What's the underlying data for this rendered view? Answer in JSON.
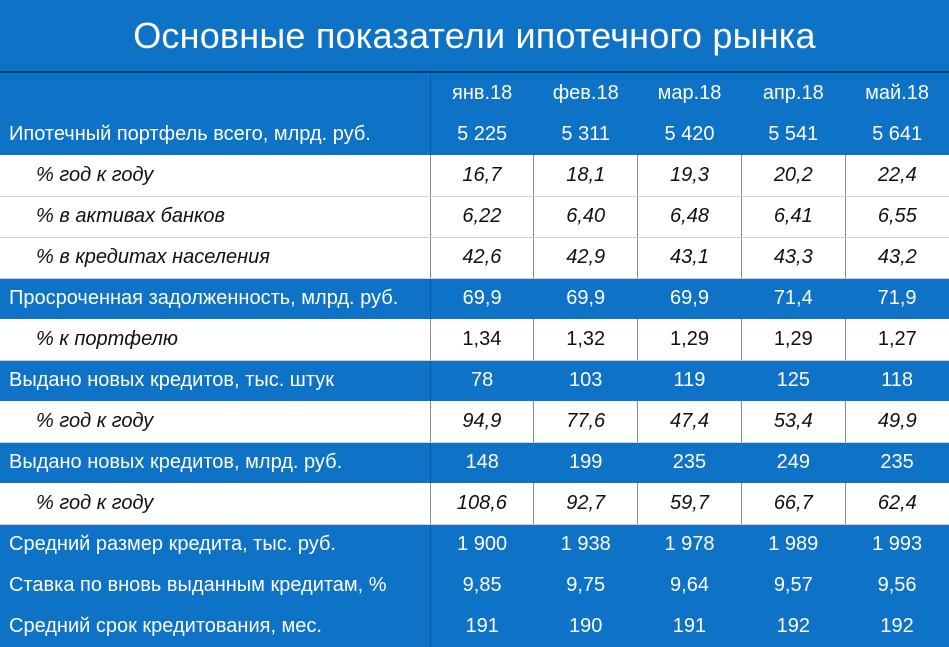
{
  "title": "Основные показатели ипотечного рынка",
  "months": [
    "янв.18",
    "фев.18",
    "мар.18",
    "апр.18",
    "май.18"
  ],
  "rows": [
    {
      "label": "Ипотечный портфель всего, млрд. руб.",
      "kind": "main",
      "values": [
        "5 225",
        "5 311",
        "5 420",
        "5 541",
        "5 641"
      ]
    },
    {
      "label": "% год к году",
      "kind": "sub",
      "values": [
        "16,7",
        "18,1",
        "19,3",
        "20,2",
        "22,4"
      ]
    },
    {
      "label": "% в активах банков",
      "kind": "sub",
      "values": [
        "6,22",
        "6,40",
        "6,48",
        "6,41",
        "6,55"
      ]
    },
    {
      "label": "% в кредитах населения",
      "kind": "sub",
      "values": [
        "42,6",
        "42,9",
        "43,1",
        "43,3",
        "43,2"
      ]
    },
    {
      "label": "Просроченная задолженность, млрд. руб.",
      "kind": "main",
      "values": [
        "69,9",
        "69,9",
        "69,9",
        "71,4",
        "71,9"
      ]
    },
    {
      "label": "% к портфелю",
      "kind": "sub-plain",
      "values": [
        "1,34",
        "1,32",
        "1,29",
        "1,29",
        "1,27"
      ]
    },
    {
      "label": "Выдано новых кредитов, тыс. штук",
      "kind": "main",
      "values": [
        "78",
        "103",
        "119",
        "125",
        "118"
      ]
    },
    {
      "label": "% год к году",
      "kind": "sub",
      "values": [
        "94,9",
        "77,6",
        "47,4",
        "53,4",
        "49,9"
      ]
    },
    {
      "label": "Выдано новых кредитов, млрд. руб.",
      "kind": "main",
      "values": [
        "148",
        "199",
        "235",
        "249",
        "235"
      ]
    },
    {
      "label": "% год к году",
      "kind": "sub",
      "values": [
        "108,6",
        "92,7",
        "59,7",
        "66,7",
        "62,4"
      ]
    },
    {
      "label": "Средний размер кредита, тыс. руб.",
      "kind": "main",
      "values": [
        "1 900",
        "1 938",
        "1 978",
        "1 989",
        "1 993"
      ]
    },
    {
      "label": "Ставка по вновь выданным кредитам, %",
      "kind": "main",
      "values": [
        "9,85",
        "9,75",
        "9,64",
        "9,57",
        "9,56"
      ]
    },
    {
      "label": "Средний срок кредитования, мес.",
      "kind": "main",
      "values": [
        "191",
        "190",
        "191",
        "192",
        "192"
      ]
    }
  ]
}
